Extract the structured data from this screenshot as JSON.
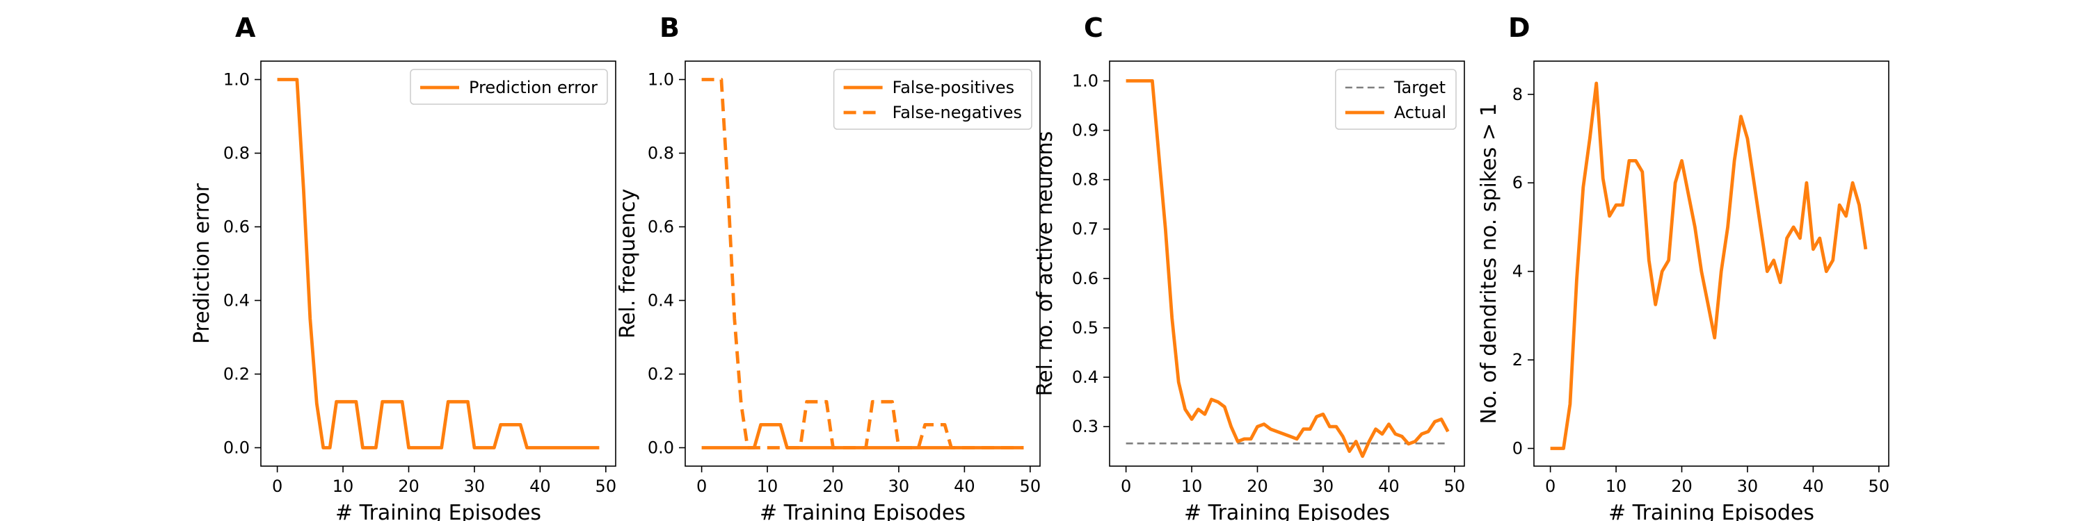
{
  "chart_data": [
    {
      "type": "line",
      "panel_label": "A",
      "xlabel": "# Training Episodes",
      "ylabel": "Prediction error",
      "xlim": [
        -2.5,
        51.5
      ],
      "ylim": [
        -0.05,
        1.05
      ],
      "xticks": [
        0,
        10,
        20,
        30,
        40,
        50
      ],
      "xtick_labels": [
        "0",
        "10",
        "20",
        "30",
        "40",
        "50"
      ],
      "yticks": [
        0.0,
        0.2,
        0.4,
        0.6,
        0.8,
        1.0
      ],
      "ytick_labels": [
        "0.0",
        "0.2",
        "0.4",
        "0.6",
        "0.8",
        "1.0"
      ],
      "grid": false,
      "legend_position": "top-right",
      "series": [
        {
          "name": "Prediction error",
          "style": "solid",
          "color": "#ff7f0e",
          "x": [
            0,
            1,
            2,
            3,
            4,
            5,
            6,
            7,
            8,
            9,
            10,
            11,
            12,
            13,
            14,
            15,
            16,
            17,
            18,
            19,
            20,
            21,
            22,
            23,
            24,
            25,
            26,
            27,
            28,
            29,
            30,
            31,
            32,
            33,
            34,
            35,
            36,
            37,
            38,
            39,
            40,
            41,
            42,
            43,
            44,
            45,
            46,
            47,
            48,
            49
          ],
          "y": [
            1,
            1,
            1,
            1,
            0.7,
            0.35,
            0.12,
            0,
            0,
            0.125,
            0.125,
            0.125,
            0.125,
            0,
            0,
            0,
            0.125,
            0.125,
            0.125,
            0.125,
            0,
            0,
            0,
            0,
            0,
            0,
            0.125,
            0.125,
            0.125,
            0.125,
            0,
            0,
            0,
            0,
            0.0625,
            0.0625,
            0.0625,
            0.0625,
            0,
            0,
            0,
            0,
            0,
            0,
            0,
            0,
            0,
            0,
            0,
            0
          ]
        }
      ]
    },
    {
      "type": "line",
      "panel_label": "B",
      "xlabel": "# Training Episodes",
      "ylabel": "Rel. frequency",
      "xlim": [
        -2.5,
        51.5
      ],
      "ylim": [
        -0.05,
        1.05
      ],
      "xticks": [
        0,
        10,
        20,
        30,
        40,
        50
      ],
      "xtick_labels": [
        "0",
        "10",
        "20",
        "30",
        "40",
        "50"
      ],
      "yticks": [
        0.0,
        0.2,
        0.4,
        0.6,
        0.8,
        1.0
      ],
      "ytick_labels": [
        "0.0",
        "0.2",
        "0.4",
        "0.6",
        "0.8",
        "1.0"
      ],
      "grid": false,
      "legend_position": "top-right",
      "series": [
        {
          "name": "False-positives",
          "style": "solid",
          "color": "#ff7f0e",
          "x": [
            0,
            1,
            2,
            3,
            4,
            5,
            6,
            7,
            8,
            9,
            10,
            11,
            12,
            13,
            14,
            15,
            16,
            17,
            18,
            19,
            20,
            21,
            22,
            23,
            24,
            25,
            26,
            27,
            28,
            29,
            30,
            31,
            32,
            33,
            34,
            35,
            36,
            37,
            38,
            39,
            40,
            41,
            42,
            43,
            44,
            45,
            46,
            47,
            48,
            49
          ],
          "y": [
            0,
            0,
            0,
            0,
            0,
            0,
            0,
            0,
            0,
            0.0625,
            0.0625,
            0.0625,
            0.0625,
            0,
            0,
            0,
            0,
            0,
            0,
            0,
            0,
            0,
            0,
            0,
            0,
            0,
            0,
            0,
            0,
            0,
            0,
            0,
            0,
            0,
            0,
            0,
            0,
            0,
            0,
            0,
            0,
            0,
            0,
            0,
            0,
            0,
            0,
            0,
            0,
            0
          ]
        },
        {
          "name": "False-negatives",
          "style": "dashed",
          "color": "#ff7f0e",
          "x": [
            0,
            1,
            2,
            3,
            4,
            5,
            6,
            7,
            8,
            9,
            10,
            11,
            12,
            13,
            14,
            15,
            16,
            17,
            18,
            19,
            20,
            21,
            22,
            23,
            24,
            25,
            26,
            27,
            28,
            29,
            30,
            31,
            32,
            33,
            34,
            35,
            36,
            37,
            38,
            39,
            40,
            41,
            42,
            43,
            44,
            45,
            46,
            47,
            48,
            49
          ],
          "y": [
            1,
            1,
            1,
            1,
            0.7,
            0.35,
            0.12,
            0,
            0,
            0,
            0,
            0,
            0,
            0,
            0,
            0,
            0.125,
            0.125,
            0.125,
            0.125,
            0,
            0,
            0,
            0,
            0,
            0,
            0.125,
            0.125,
            0.125,
            0.125,
            0,
            0,
            0,
            0,
            0.0625,
            0.0625,
            0.0625,
            0.0625,
            0,
            0,
            0,
            0,
            0,
            0,
            0,
            0,
            0,
            0,
            0,
            0
          ]
        }
      ]
    },
    {
      "type": "line",
      "panel_label": "C",
      "xlabel": "# Training Episodes",
      "ylabel": "Rel. no. of active neurons",
      "xlim": [
        -2.5,
        51.5
      ],
      "ylim": [
        0.22,
        1.04
      ],
      "xticks": [
        0,
        10,
        20,
        30,
        40,
        50
      ],
      "xtick_labels": [
        "0",
        "10",
        "20",
        "30",
        "40",
        "50"
      ],
      "yticks": [
        0.3,
        0.4,
        0.5,
        0.6,
        0.7,
        0.8,
        0.9,
        1.0
      ],
      "ytick_labels": [
        "0.3",
        "0.4",
        "0.5",
        "0.6",
        "0.7",
        "0.8",
        "0.9",
        "1.0"
      ],
      "grid": false,
      "legend_position": "top-right",
      "series": [
        {
          "name": "Target",
          "style": "dashed",
          "color": "#7f7f7f",
          "x": [
            0,
            49
          ],
          "y": [
            0.266,
            0.266
          ]
        },
        {
          "name": "Actual",
          "style": "solid",
          "color": "#ff7f0e",
          "x": [
            0,
            1,
            2,
            3,
            4,
            5,
            6,
            7,
            8,
            9,
            10,
            11,
            12,
            13,
            14,
            15,
            16,
            17,
            18,
            19,
            20,
            21,
            22,
            23,
            24,
            25,
            26,
            27,
            28,
            29,
            30,
            31,
            32,
            33,
            34,
            35,
            36,
            37,
            38,
            39,
            40,
            41,
            42,
            43,
            44,
            45,
            46,
            47,
            48,
            49
          ],
          "y": [
            1.0,
            1.0,
            1.0,
            1.0,
            1.0,
            0.85,
            0.7,
            0.52,
            0.39,
            0.335,
            0.315,
            0.335,
            0.325,
            0.355,
            0.35,
            0.34,
            0.3,
            0.27,
            0.275,
            0.275,
            0.3,
            0.305,
            0.295,
            0.29,
            0.285,
            0.28,
            0.275,
            0.295,
            0.295,
            0.32,
            0.325,
            0.3,
            0.3,
            0.28,
            0.25,
            0.27,
            0.24,
            0.27,
            0.295,
            0.285,
            0.305,
            0.285,
            0.28,
            0.265,
            0.27,
            0.285,
            0.29,
            0.31,
            0.315,
            0.29
          ]
        }
      ]
    },
    {
      "type": "line",
      "panel_label": "D",
      "xlabel": "# Training Episodes",
      "ylabel": "No. of dendrites no. spikes > 1",
      "xlim": [
        -2.5,
        51.5
      ],
      "ylim": [
        -0.4,
        8.75
      ],
      "xticks": [
        0,
        10,
        20,
        30,
        40,
        50
      ],
      "xtick_labels": [
        "0",
        "10",
        "20",
        "30",
        "40",
        "50"
      ],
      "yticks": [
        0,
        2,
        4,
        6,
        8
      ],
      "ytick_labels": [
        "0",
        "2",
        "4",
        "6",
        "8"
      ],
      "grid": false,
      "legend_position": "",
      "series": [
        {
          "style": "solid",
          "color": "#ff7f0e",
          "x": [
            0,
            1,
            2,
            3,
            4,
            5,
            6,
            7,
            8,
            9,
            10,
            11,
            12,
            13,
            14,
            15,
            16,
            17,
            18,
            19,
            20,
            21,
            22,
            23,
            24,
            25,
            26,
            27,
            28,
            29,
            30,
            31,
            32,
            33,
            34,
            35,
            36,
            37,
            38,
            39,
            40,
            41,
            42,
            43,
            44,
            45,
            46,
            47,
            48,
            49
          ],
          "y": [
            0,
            0,
            0,
            1,
            3.8,
            5.9,
            7,
            8.25,
            6.1,
            5.25,
            5.5,
            5.5,
            6.5,
            6.5,
            6.25,
            4.25,
            3.25,
            4,
            4.25,
            6,
            6.5,
            5.75,
            5,
            4,
            3.25,
            2.5,
            4,
            5,
            6.5,
            7.5,
            7,
            6,
            5,
            4,
            4.25,
            3.75,
            4.75,
            5,
            4.75,
            6,
            4.5,
            4.75,
            4,
            4.25,
            5.5,
            5.25,
            6,
            5.5,
            4.5,
            null
          ]
        }
      ]
    }
  ]
}
